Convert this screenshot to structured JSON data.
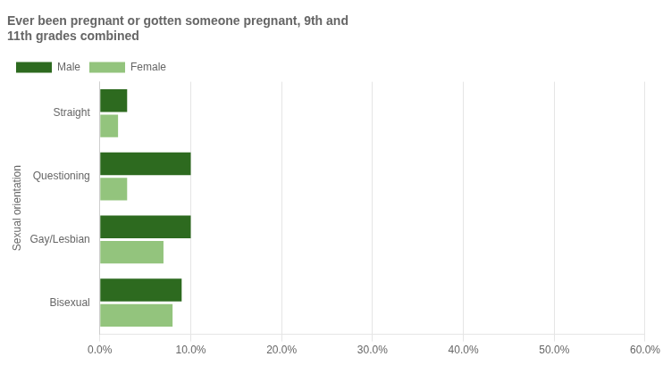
{
  "chart_data": {
    "type": "bar",
    "orientation": "horizontal",
    "title": "Ever been pregnant or gotten someone pregnant, 9th and\n11th grades combined",
    "categories": [
      "Straight",
      "Questioning",
      "Gay/Lesbian",
      "Bisexual"
    ],
    "series": [
      {
        "name": "Male",
        "color": "#2d6a1f",
        "values": [
          0.03,
          0.1,
          0.1,
          0.09
        ]
      },
      {
        "name": "Female",
        "color": "#93c47d",
        "values": [
          0.02,
          0.03,
          0.07,
          0.08
        ]
      }
    ],
    "ylabel": "Sexual orientation",
    "xlim": [
      0,
      0.6
    ],
    "xticks": [
      {
        "value": 0.0,
        "label": "0.0%"
      },
      {
        "value": 0.1,
        "label": "10.0%"
      },
      {
        "value": 0.2,
        "label": "20.0%"
      },
      {
        "value": 0.3,
        "label": "30.0%"
      },
      {
        "value": 0.4,
        "label": "40.0%"
      },
      {
        "value": 0.5,
        "label": "50.0%"
      },
      {
        "value": 0.6,
        "label": "60.0%"
      }
    ],
    "grid": true,
    "legend": "upper left"
  }
}
